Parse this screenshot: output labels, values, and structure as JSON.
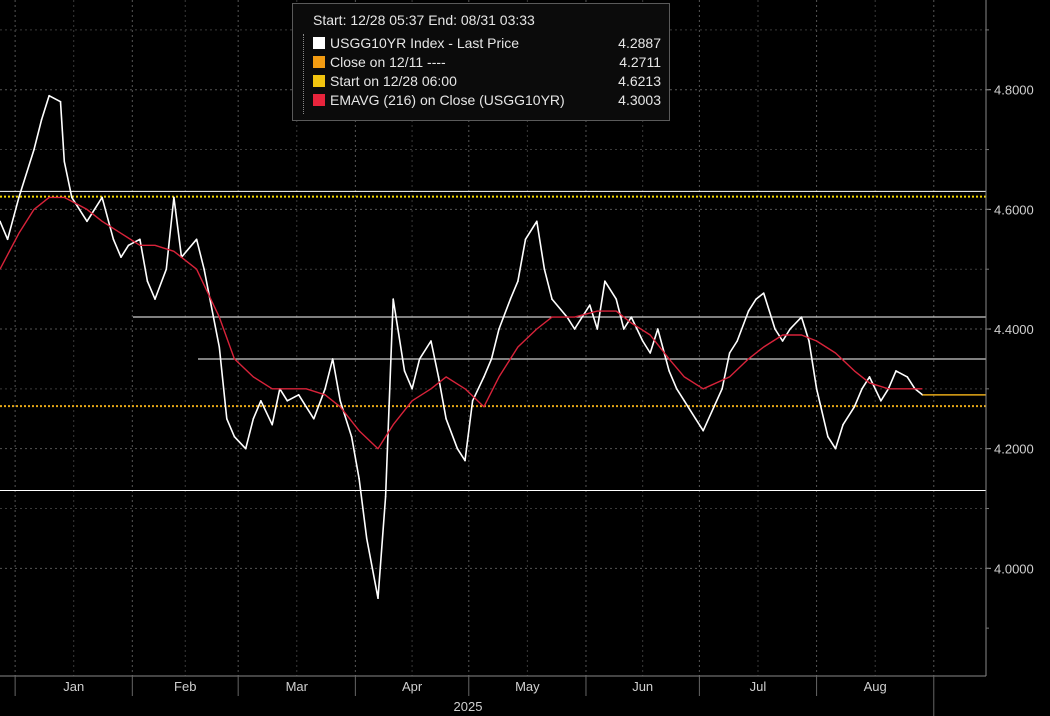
{
  "legend": {
    "header": "Start: 12/28 05:37 End: 08/31 03:33",
    "rows": [
      {
        "label": "USGG10YR Index - Last Price",
        "value": "4.2887",
        "color": "#ffffff"
      },
      {
        "label": "Close on 12/11 ----",
        "value": "4.2711",
        "color": "#f39c12"
      },
      {
        "label": "Start on 12/28 06:00",
        "value": "4.6213",
        "color": "#f1c40f"
      },
      {
        "label": "EMAVG (216)  on Close (USGG10YR)",
        "value": "4.3003",
        "color": "#e8243c"
      }
    ]
  },
  "chart_data": {
    "type": "line",
    "title": "",
    "xlabel": "2025",
    "ylabel": "",
    "x_tick_labels": [
      "Jan",
      "Feb",
      "Mar",
      "Apr",
      "May",
      "Jun",
      "Jul",
      "Aug"
    ],
    "y_tick_labels": [
      "4.0000",
      "4.2000",
      "4.4000",
      "4.6000",
      "4.8000"
    ],
    "y_ticks": [
      4.0,
      4.2,
      4.4,
      4.6,
      4.8
    ],
    "ylim": [
      3.82,
      4.95
    ],
    "grid": true,
    "colors": {
      "price": "#ffffff",
      "ema": "#d8233a",
      "close_ref": "#e6a817",
      "start_ref": "#f5d600",
      "hlines": "#ffffff"
    },
    "horizontal_lines": [
      {
        "name": "Start on 12/28 06:00",
        "value": 4.6213,
        "style": "dotted",
        "color": "#f5d600"
      },
      {
        "name": "Close on 12/11",
        "value": 4.2711,
        "style": "dotted",
        "color": "#e6a817"
      },
      {
        "value": 4.63,
        "style": "solid",
        "color": "#ffffff"
      },
      {
        "value": 4.42,
        "style": "solid",
        "color": "#ffffff"
      },
      {
        "value": 4.35,
        "style": "solid",
        "color": "#ffffff"
      },
      {
        "value": 4.13,
        "style": "solid",
        "color": "#ffffff"
      }
    ],
    "series": [
      {
        "name": "USGG10YR Index - Last Price",
        "x": [
          "12/28",
          "12/30",
          "01/02",
          "01/06",
          "01/08",
          "01/10",
          "01/13",
          "01/14",
          "01/16",
          "01/20",
          "01/22",
          "01/24",
          "01/27",
          "01/29",
          "01/31",
          "02/03",
          "02/05",
          "02/07",
          "02/10",
          "02/12",
          "02/14",
          "02/18",
          "02/20",
          "02/24",
          "02/26",
          "02/28",
          "03/03",
          "03/05",
          "03/07",
          "03/10",
          "03/12",
          "03/14",
          "03/17",
          "03/19",
          "03/21",
          "03/24",
          "03/26",
          "03/28",
          "03/31",
          "04/02",
          "04/04",
          "04/07",
          "04/09",
          "04/11",
          "04/14",
          "04/16",
          "04/18",
          "04/21",
          "04/23",
          "04/25",
          "04/28",
          "04/30",
          "05/02",
          "05/05",
          "05/07",
          "05/09",
          "05/12",
          "05/14",
          "05/16",
          "05/19",
          "05/21",
          "05/23",
          "05/27",
          "05/29",
          "06/02",
          "06/04",
          "06/06",
          "06/09",
          "06/11",
          "06/13",
          "06/16",
          "06/18",
          "06/20",
          "06/23",
          "06/25",
          "06/27",
          "06/30",
          "07/02",
          "07/07",
          "07/09",
          "07/11",
          "07/14",
          "07/16",
          "07/18",
          "07/21",
          "07/23",
          "07/25",
          "07/28",
          "07/30",
          "08/01",
          "08/04",
          "08/06",
          "08/08",
          "08/11",
          "08/13",
          "08/15",
          "08/18",
          "08/20",
          "08/22",
          "08/25",
          "08/27",
          "08/29"
        ],
        "values": [
          4.58,
          4.55,
          4.62,
          4.7,
          4.75,
          4.79,
          4.78,
          4.68,
          4.62,
          4.58,
          4.6,
          4.62,
          4.55,
          4.52,
          4.54,
          4.55,
          4.48,
          4.45,
          4.5,
          4.62,
          4.52,
          4.55,
          4.5,
          4.37,
          4.25,
          4.22,
          4.2,
          4.25,
          4.28,
          4.24,
          4.3,
          4.28,
          4.29,
          4.27,
          4.25,
          4.3,
          4.35,
          4.28,
          4.22,
          4.15,
          4.05,
          3.95,
          4.12,
          4.45,
          4.33,
          4.3,
          4.35,
          4.38,
          4.32,
          4.25,
          4.2,
          4.18,
          4.28,
          4.32,
          4.35,
          4.4,
          4.45,
          4.48,
          4.55,
          4.58,
          4.5,
          4.45,
          4.42,
          4.4,
          4.44,
          4.4,
          4.48,
          4.45,
          4.4,
          4.42,
          4.38,
          4.36,
          4.4,
          4.33,
          4.3,
          4.28,
          4.25,
          4.23,
          4.3,
          4.36,
          4.38,
          4.43,
          4.45,
          4.46,
          4.4,
          4.38,
          4.4,
          4.42,
          4.38,
          4.3,
          4.22,
          4.2,
          4.24,
          4.27,
          4.3,
          4.32,
          4.28,
          4.3,
          4.33,
          4.32,
          4.3,
          4.29
        ]
      },
      {
        "name": "EMAVG (216)  on Close (USGG10YR)",
        "x": [
          "12/28",
          "01/02",
          "01/06",
          "01/10",
          "01/14",
          "01/20",
          "01/24",
          "01/29",
          "02/03",
          "02/07",
          "02/12",
          "02/18",
          "02/24",
          "02/28",
          "03/05",
          "03/10",
          "03/14",
          "03/19",
          "03/24",
          "03/28",
          "04/02",
          "04/07",
          "04/11",
          "04/16",
          "04/21",
          "04/25",
          "04/30",
          "05/05",
          "05/09",
          "05/14",
          "05/19",
          "05/23",
          "05/29",
          "06/04",
          "06/09",
          "06/13",
          "06/18",
          "06/23",
          "06/27",
          "07/02",
          "07/09",
          "07/14",
          "07/18",
          "07/23",
          "07/28",
          "08/01",
          "08/06",
          "08/11",
          "08/15",
          "08/20",
          "08/25",
          "08/29"
        ],
        "values": [
          4.5,
          4.56,
          4.6,
          4.62,
          4.62,
          4.6,
          4.58,
          4.56,
          4.54,
          4.54,
          4.53,
          4.5,
          4.42,
          4.35,
          4.32,
          4.3,
          4.3,
          4.3,
          4.29,
          4.27,
          4.23,
          4.2,
          4.24,
          4.28,
          4.3,
          4.32,
          4.3,
          4.27,
          4.32,
          4.37,
          4.4,
          4.42,
          4.42,
          4.43,
          4.43,
          4.41,
          4.39,
          4.35,
          4.32,
          4.3,
          4.32,
          4.35,
          4.37,
          4.39,
          4.39,
          4.38,
          4.36,
          4.33,
          4.31,
          4.3,
          4.3,
          4.3
        ]
      }
    ]
  }
}
